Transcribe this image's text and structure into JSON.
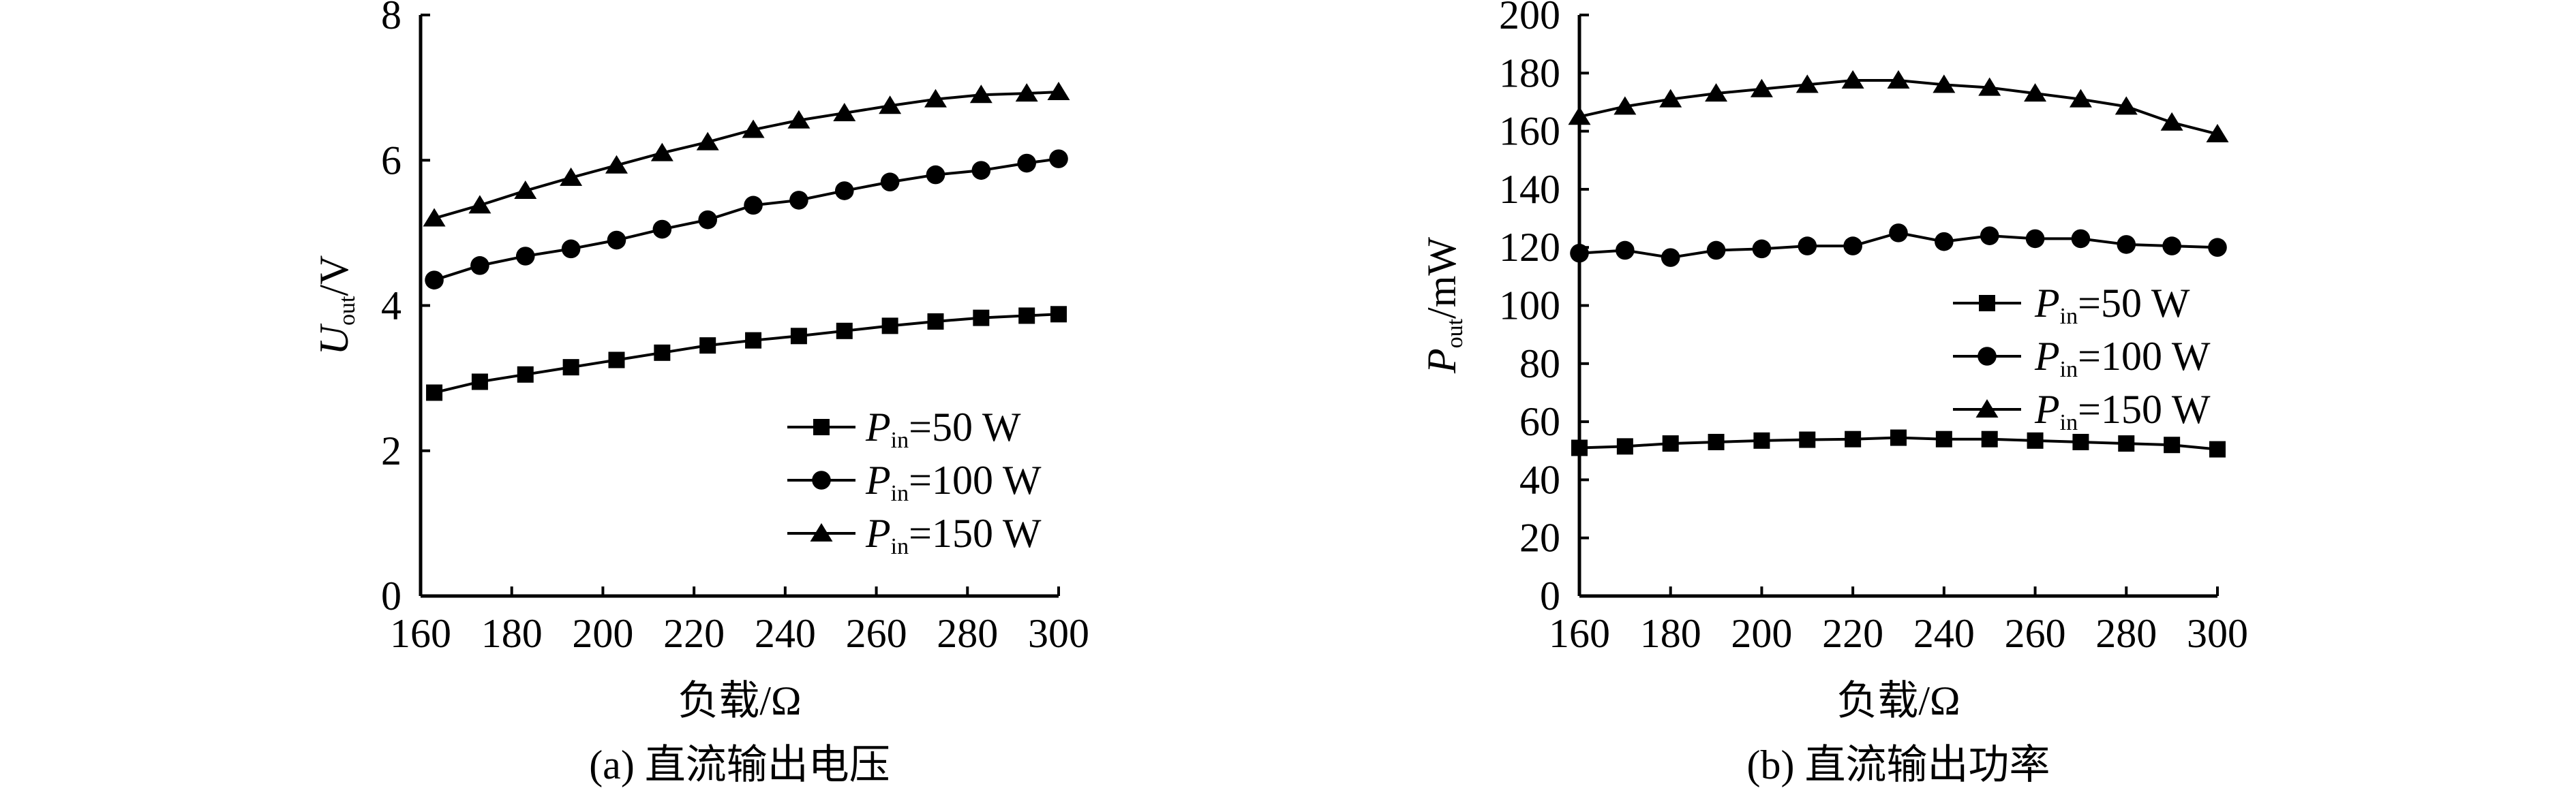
{
  "chart_data": [
    {
      "type": "line",
      "caption": "(a) 直流输出电压",
      "xlabel": "负载/Ω",
      "ylabel": {
        "main": "U",
        "sub": "out",
        "rest": "/V"
      },
      "xlim": [
        160,
        300
      ],
      "ylim": [
        0,
        8
      ],
      "xticks": [
        "160",
        "180",
        "200",
        "220",
        "240",
        "260",
        "280",
        "300"
      ],
      "yticks": [
        "0",
        "2",
        "4",
        "6",
        "8"
      ],
      "grid": false,
      "legend_position": "bottom-right",
      "x": [
        163,
        173,
        183,
        193,
        203,
        213,
        223,
        233,
        243,
        253,
        263,
        273,
        283,
        293,
        300
      ],
      "series": [
        {
          "name": {
            "main": "P",
            "sub": "in",
            "rest": "=50 W"
          },
          "marker": "square",
          "values": [
            2.8,
            2.95,
            3.05,
            3.15,
            3.25,
            3.35,
            3.45,
            3.52,
            3.58,
            3.65,
            3.72,
            3.78,
            3.83,
            3.86,
            3.88
          ]
        },
        {
          "name": {
            "main": "P",
            "sub": "in",
            "rest": "=100 W"
          },
          "marker": "circle",
          "values": [
            4.35,
            4.55,
            4.68,
            4.78,
            4.9,
            5.05,
            5.18,
            5.38,
            5.45,
            5.58,
            5.7,
            5.8,
            5.86,
            5.96,
            6.02
          ]
        },
        {
          "name": {
            "main": "P",
            "sub": "in",
            "rest": "=150 W"
          },
          "marker": "triangle",
          "values": [
            5.2,
            5.38,
            5.58,
            5.76,
            5.93,
            6.1,
            6.25,
            6.42,
            6.55,
            6.65,
            6.75,
            6.84,
            6.9,
            6.92,
            6.94
          ]
        }
      ]
    },
    {
      "type": "line",
      "caption": "(b) 直流输出功率",
      "xlabel": "负载/Ω",
      "ylabel": {
        "main": "P",
        "sub": "out",
        "rest": "/mW"
      },
      "xlim": [
        160,
        300
      ],
      "ylim": [
        0,
        200
      ],
      "xticks": [
        "160",
        "180",
        "200",
        "220",
        "240",
        "260",
        "280",
        "300"
      ],
      "yticks": [
        "0",
        "20",
        "40",
        "60",
        "80",
        "100",
        "120",
        "140",
        "160",
        "180",
        "200"
      ],
      "grid": false,
      "legend_position": "center-right",
      "x": [
        160,
        170,
        180,
        190,
        200,
        210,
        220,
        230,
        240,
        250,
        260,
        270,
        280,
        290,
        300
      ],
      "series": [
        {
          "name": {
            "main": "P",
            "sub": "in",
            "rest": "=50 W"
          },
          "marker": "square",
          "values": [
            51,
            51.5,
            52.5,
            53,
            53.5,
            53.8,
            54,
            54.5,
            54,
            54,
            53.5,
            53,
            52.5,
            52,
            50.5
          ]
        },
        {
          "name": {
            "main": "P",
            "sub": "in",
            "rest": "=100 W"
          },
          "marker": "circle",
          "values": [
            118,
            119,
            116.5,
            119,
            119.5,
            120.5,
            120.5,
            125,
            122,
            124,
            123,
            123,
            121,
            120.5,
            120
          ]
        },
        {
          "name": {
            "main": "P",
            "sub": "in",
            "rest": "=150 W"
          },
          "marker": "triangle",
          "values": [
            165,
            168.5,
            171,
            173,
            174.5,
            176,
            177.5,
            177.5,
            176,
            175,
            173,
            171,
            168.5,
            163,
            159
          ]
        }
      ]
    }
  ]
}
